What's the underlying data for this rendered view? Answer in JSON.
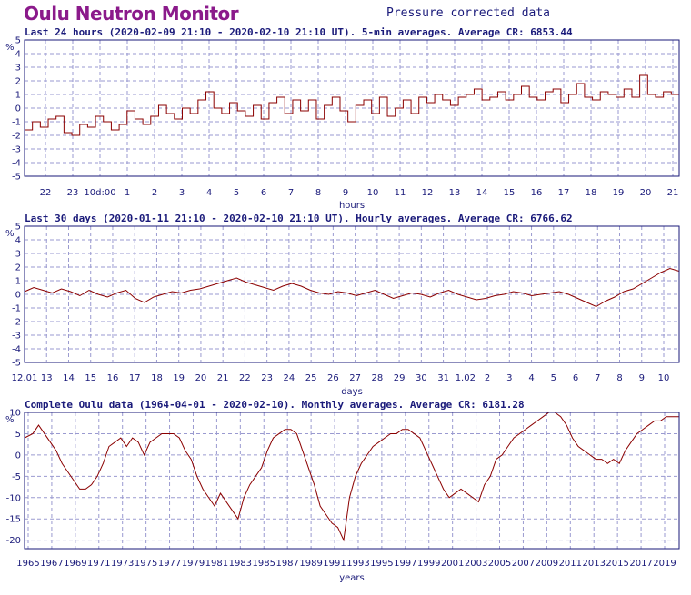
{
  "page": {
    "title": "Oulu Neutron Monitor",
    "subtitle": "Pressure corrected data"
  },
  "colors": {
    "title": "#8b1a8b",
    "text": "#1a1a7a",
    "frame": "#1a1a7a",
    "grid": "#9a9ad0",
    "series": "#8b0000"
  },
  "chart_data": [
    {
      "type": "line",
      "header": "Last 24 hours (2020-02-09 21:10 - 2020-02-10 21:10 UT). 5-min averages. Average CR: 6853.44",
      "xlabel": "hours",
      "ylabel": "%",
      "ylim": [
        -5,
        5
      ],
      "yticks": [
        5,
        4,
        3,
        2,
        1,
        0,
        -1,
        -2,
        -3,
        -4,
        -5
      ],
      "xticks": [
        "22",
        "23",
        "10d:00",
        "1",
        "2",
        "3",
        "4",
        "5",
        "6",
        "7",
        "8",
        "9",
        "10",
        "11",
        "12",
        "13",
        "14",
        "15",
        "16",
        "17",
        "18",
        "19",
        "20",
        "21"
      ],
      "line_style": "step",
      "resolution": "5-min",
      "series": [
        {
          "values": [
            -1.6,
            -1.0,
            -1.4,
            -0.8,
            -0.6,
            -1.8,
            -2.0,
            -1.2,
            -1.4,
            -0.6,
            -1.0,
            -1.6,
            -1.2,
            -0.2,
            -0.8,
            -1.2,
            -0.6,
            0.2,
            -0.4,
            -0.8,
            0.0,
            -0.4,
            0.6,
            1.2,
            0.0,
            -0.4,
            0.4,
            -0.2,
            -0.6,
            0.2,
            -0.8,
            0.4,
            0.8,
            -0.4,
            0.6,
            -0.2,
            0.6,
            -0.8,
            0.2,
            0.8,
            -0.2,
            -1.0,
            0.2,
            0.6,
            -0.4,
            0.8,
            -0.6,
            0.0,
            0.6,
            -0.4,
            0.8,
            0.4,
            1.0,
            0.6,
            0.2,
            0.8,
            1.0,
            1.4,
            0.6,
            0.8,
            1.2,
            0.6,
            1.0,
            1.6,
            0.8,
            0.6,
            1.2,
            1.4,
            0.4,
            1.0,
            1.8,
            0.8,
            0.6,
            1.2,
            1.0,
            0.8,
            1.4,
            0.8,
            2.4,
            1.0,
            0.8,
            1.2,
            1.0,
            0.6
          ]
        }
      ]
    },
    {
      "type": "line",
      "header": "Last 30 days (2020-01-11 21:10 - 2020-02-10 21:10 UT). Hourly averages. Average CR: 6766.62",
      "xlabel": "days",
      "ylabel": "%",
      "ylim": [
        -5,
        5
      ],
      "yticks": [
        5,
        4,
        3,
        2,
        1,
        0,
        -1,
        -2,
        -3,
        -4,
        -5
      ],
      "xticks": [
        "12.01",
        "13",
        "14",
        "15",
        "16",
        "17",
        "18",
        "19",
        "20",
        "21",
        "22",
        "23",
        "24",
        "25",
        "26",
        "27",
        "28",
        "29",
        "30",
        "31",
        "1.02",
        "2",
        "3",
        "4",
        "5",
        "6",
        "7",
        "8",
        "9",
        "10"
      ],
      "resolution": "hourly",
      "series": [
        {
          "values": [
            0.2,
            0.5,
            0.3,
            0.1,
            0.4,
            0.2,
            -0.1,
            0.3,
            0.0,
            -0.2,
            0.1,
            0.3,
            -0.3,
            -0.6,
            -0.2,
            0.0,
            0.2,
            0.1,
            0.3,
            0.4,
            0.6,
            0.8,
            1.0,
            1.2,
            0.9,
            0.7,
            0.5,
            0.3,
            0.6,
            0.8,
            0.6,
            0.3,
            0.1,
            0.0,
            0.2,
            0.1,
            -0.1,
            0.1,
            0.3,
            0.0,
            -0.3,
            -0.1,
            0.1,
            0.0,
            -0.2,
            0.1,
            0.3,
            0.0,
            -0.2,
            -0.4,
            -0.3,
            -0.1,
            0.0,
            0.2,
            0.1,
            -0.1,
            0.0,
            0.1,
            0.2,
            0.0,
            -0.3,
            -0.6,
            -0.9,
            -0.5,
            -0.2,
            0.2,
            0.4,
            0.8,
            1.2,
            1.6,
            1.9,
            1.7
          ]
        }
      ]
    },
    {
      "type": "line",
      "header": "Complete Oulu data (1964-04-01 - 2020-02-10). Monthly averages. Average CR: 6181.28",
      "xlabel": "years",
      "ylabel": "%",
      "ylim": [
        -22,
        10
      ],
      "yticks": [
        10,
        5,
        0,
        -5,
        -10,
        -15,
        -20
      ],
      "xticks": [
        "1965",
        "1967",
        "1969",
        "1971",
        "1973",
        "1975",
        "1977",
        "1979",
        "1981",
        "1983",
        "1985",
        "1987",
        "1989",
        "1991",
        "1993",
        "1995",
        "1997",
        "1999",
        "2001",
        "2003",
        "2005",
        "2007",
        "2009",
        "2011",
        "2013",
        "2015",
        "2017",
        "2019"
      ],
      "resolution": "monthly",
      "series": [
        {
          "x": [
            1964.3,
            1965.0,
            1965.5,
            1966.0,
            1966.5,
            1967.0,
            1967.5,
            1968.0,
            1968.5,
            1969.0,
            1969.5,
            1970.0,
            1970.5,
            1971.0,
            1971.5,
            1972.0,
            1972.5,
            1973.0,
            1973.5,
            1974.0,
            1974.5,
            1975.0,
            1975.5,
            1976.0,
            1976.5,
            1977.0,
            1977.5,
            1978.0,
            1978.5,
            1979.0,
            1979.5,
            1980.0,
            1980.5,
            1981.0,
            1981.5,
            1982.0,
            1982.5,
            1983.0,
            1983.5,
            1984.0,
            1984.5,
            1985.0,
            1985.5,
            1986.0,
            1986.5,
            1987.0,
            1987.5,
            1988.0,
            1988.5,
            1989.0,
            1989.5,
            1990.0,
            1990.5,
            1991.0,
            1991.5,
            1992.0,
            1992.5,
            1993.0,
            1993.5,
            1994.0,
            1994.5,
            1995.0,
            1995.5,
            1996.0,
            1996.5,
            1997.0,
            1997.5,
            1998.0,
            1998.5,
            1999.0,
            1999.5,
            2000.0,
            2000.5,
            2001.0,
            2001.5,
            2002.0,
            2002.5,
            2003.0,
            2003.5,
            2004.0,
            2004.5,
            2005.0,
            2005.5,
            2006.0,
            2006.5,
            2007.0,
            2007.5,
            2008.0,
            2008.5,
            2009.0,
            2009.5,
            2010.0,
            2010.5,
            2011.0,
            2011.5,
            2012.0,
            2012.5,
            2013.0,
            2013.5,
            2014.0,
            2014.5,
            2015.0,
            2015.5,
            2016.0,
            2016.5,
            2017.0,
            2017.5,
            2018.0,
            2018.5,
            2019.0,
            2019.5,
            2020.1
          ],
          "values": [
            4,
            5,
            7,
            5,
            3,
            1,
            -2,
            -4,
            -6,
            -8,
            -8,
            -7,
            -5,
            -2,
            2,
            3,
            4,
            2,
            4,
            3,
            0,
            3,
            4,
            5,
            5,
            5,
            4,
            1,
            -1,
            -5,
            -8,
            -10,
            -12,
            -9,
            -11,
            -13,
            -15,
            -10,
            -7,
            -5,
            -3,
            1,
            4,
            5,
            6,
            6,
            5,
            1,
            -3,
            -7,
            -12,
            -14,
            -16,
            -17,
            -20,
            -10,
            -5,
            -2,
            0,
            2,
            3,
            4,
            5,
            5,
            6,
            6,
            5,
            4,
            1,
            -2,
            -5,
            -8,
            -10,
            -9,
            -8,
            -9,
            -10,
            -11,
            -7,
            -5,
            -1,
            0,
            2,
            4,
            5,
            6,
            7,
            8,
            9,
            10,
            10,
            9,
            7,
            4,
            2,
            1,
            0,
            -1,
            -1,
            -2,
            -1,
            -2,
            1,
            3,
            5,
            6,
            7,
            8,
            8,
            9,
            9,
            9
          ]
        }
      ]
    }
  ]
}
